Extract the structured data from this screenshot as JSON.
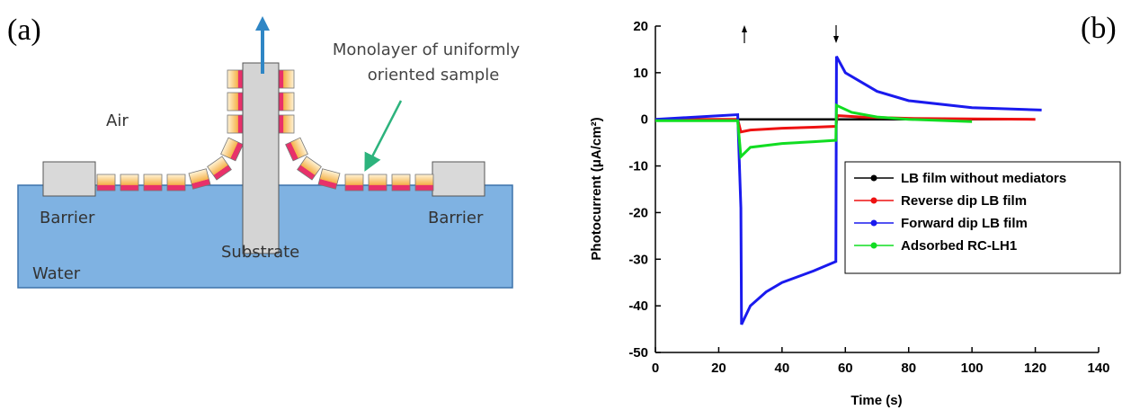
{
  "panel_a": {
    "label": "(a)",
    "annotation_lines": [
      "Monolayer of uniformly",
      "oriented sample"
    ],
    "air": "Air",
    "barrier_left": "Barrier",
    "barrier_right": "Barrier",
    "substrate": "Substrate",
    "water": "Water"
  },
  "chart_data": {
    "type": "line",
    "panel_label": "(b)",
    "x_label": "Time (s)",
    "y_label": "Photocurrent (μA/cm²)",
    "xlim": [
      0,
      140
    ],
    "xticks": [
      0,
      20,
      40,
      60,
      80,
      100,
      120,
      140
    ],
    "ylim": [
      -50,
      20
    ],
    "yticks": [
      -50,
      -40,
      -30,
      -20,
      -10,
      0,
      10,
      20
    ],
    "series": [
      {
        "name": "LB film without mediators",
        "color": "#000000",
        "x": [
          0,
          27,
          57,
          120
        ],
        "values": [
          0,
          0,
          0,
          0
        ]
      },
      {
        "name": "Reverse dip LB film",
        "color": "#ee1111",
        "x": [
          0,
          26,
          27,
          30,
          40,
          50,
          57,
          57.5,
          65,
          80,
          100,
          120
        ],
        "values": [
          0,
          0,
          -2.7,
          -2.3,
          -1.9,
          -1.7,
          -1.5,
          0.8,
          0.5,
          0.2,
          0.1,
          0
        ]
      },
      {
        "name": "Forward dip LB film",
        "color": "#1a1aee",
        "x": [
          0,
          26,
          27,
          27.2,
          30,
          35,
          40,
          50,
          57,
          57.2,
          60,
          70,
          80,
          100,
          122
        ],
        "values": [
          0,
          1,
          -19,
          -44,
          -40,
          -37,
          -35,
          -32.5,
          -30.5,
          13.5,
          10,
          6,
          4,
          2.5,
          2
        ]
      },
      {
        "name": "Adsorbed RC-LH1",
        "color": "#11dd22",
        "x": [
          0,
          26,
          27,
          30,
          40,
          50,
          57,
          57.2,
          62,
          70,
          80,
          100
        ],
        "values": [
          -0.3,
          -0.3,
          -8,
          -6,
          -5.2,
          -4.8,
          -4.5,
          3,
          1.5,
          0.5,
          0,
          -0.5
        ]
      }
    ]
  }
}
